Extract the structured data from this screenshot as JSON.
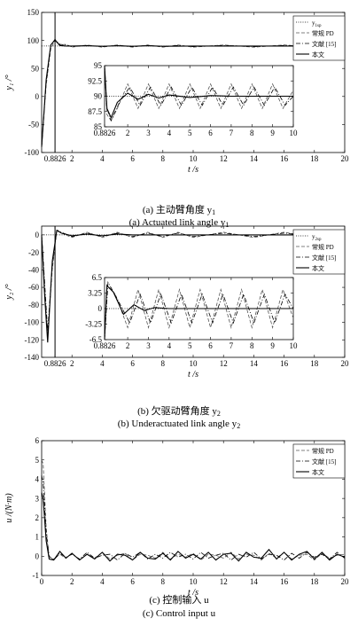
{
  "charts": [
    {
      "ylabel": "y₁ /°",
      "xlabel": "t /s",
      "caption_cn": "(a) 主动臂角度 y",
      "caption_cn_sub": "1",
      "caption_en": "(a) Actuated link angle y",
      "caption_en_sub": "1",
      "legend": [
        "y_1sp",
        "常规 PD",
        "文献 [15]",
        "本文"
      ]
    },
    {
      "ylabel": "y₂ /°",
      "xlabel": "t /s",
      "caption_cn": "(b) 欠驱动臂角度 y",
      "caption_cn_sub": "2",
      "caption_en": "(b) Underactuated link angle y",
      "caption_en_sub": "2",
      "legend": [
        "y_2sp",
        "常规 PD",
        "文献 [15]",
        "本文"
      ]
    },
    {
      "ylabel": "u /(N·m)",
      "xlabel": "t /s",
      "caption_cn": "(c) 控制输入 u",
      "caption_en": "(c) Control input u",
      "legend": [
        "常规 PD",
        "文献 [15]",
        "本文"
      ]
    }
  ],
  "chart_data": [
    {
      "type": "line",
      "xlim": [
        0,
        20
      ],
      "ylim": [
        -100,
        150
      ],
      "xticks": [
        "0.8826",
        "2",
        "4",
        "6",
        "8",
        "10",
        "12",
        "14",
        "16",
        "18",
        "20"
      ],
      "yticks": [
        "-100",
        "-50",
        "0",
        "50",
        "100",
        "150"
      ],
      "series": [
        {
          "name": "y_1sp",
          "style": "dotted",
          "x": [
            0,
            20
          ],
          "y": [
            90,
            90
          ]
        },
        {
          "name": "常规 PD",
          "style": "dashed",
          "x": [
            0,
            0.3,
            0.6,
            0.88,
            1.2,
            1.6,
            2,
            3,
            4,
            5,
            6,
            7,
            8,
            9,
            10,
            12,
            14,
            16,
            18,
            20
          ],
          "y": [
            -90,
            20,
            85,
            100,
            92,
            93,
            88,
            92,
            88,
            92,
            88,
            92,
            88,
            92,
            88,
            92,
            88,
            92,
            88,
            91
          ]
        },
        {
          "name": "文献 [15]",
          "style": "dashdot",
          "x": [
            0,
            0.3,
            0.6,
            0.88,
            1.2,
            1.6,
            2,
            3,
            4,
            5,
            6,
            7,
            8,
            9,
            10,
            12,
            14,
            16,
            18,
            20
          ],
          "y": [
            -90,
            25,
            90,
            102,
            93,
            92,
            89,
            91,
            89,
            91,
            89,
            91,
            89,
            91,
            89,
            91,
            89,
            91,
            89,
            90
          ]
        },
        {
          "name": "本文",
          "style": "solid",
          "x": [
            0,
            0.3,
            0.6,
            0.88,
            1.2,
            1.6,
            2,
            3,
            4,
            5,
            6,
            7,
            8,
            10,
            12,
            14,
            16,
            18,
            20
          ],
          "y": [
            -90,
            30,
            92,
            101,
            91,
            90,
            90,
            90.5,
            89.5,
            90.5,
            89.5,
            90.5,
            89.5,
            90,
            90,
            90,
            90,
            90,
            90
          ]
        }
      ],
      "inset": {
        "xlim": [
          0.8826,
          10
        ],
        "ylim": [
          85,
          95
        ],
        "xticks": [
          "0.8826",
          "2",
          "3",
          "4",
          "5",
          "6",
          "7",
          "8",
          "9",
          "10"
        ],
        "yticks": [
          "85",
          "87.5",
          "90",
          "92.5",
          "95"
        ],
        "series": [
          {
            "name": "y_1sp",
            "style": "dotted",
            "x": [
              0.8826,
              10
            ],
            "y": [
              90,
              90
            ]
          },
          {
            "name": "常规 PD",
            "style": "dashed",
            "x": [
              0.8826,
              1,
              1.2,
              1.5,
              2,
              2.5,
              3,
              3.5,
              4,
              4.5,
              5,
              5.5,
              6,
              6.5,
              7,
              7.5,
              8,
              8.5,
              9,
              9.5,
              10
            ],
            "y": [
              95,
              87,
              86,
              88,
              92,
              88,
              92,
              88,
              92,
              88,
              92,
              88,
              92,
              88,
              92,
              88,
              92,
              88,
              92,
              88,
              91
            ]
          },
          {
            "name": "文献 [15]",
            "style": "dashdot",
            "x": [
              0.8826,
              1,
              1.2,
              1.6,
              2.1,
              2.6,
              3.1,
              3.6,
              4.1,
              4.6,
              5.1,
              5.6,
              6.1,
              6.6,
              7.1,
              7.6,
              8.1,
              8.6,
              9.1,
              9.6,
              10
            ],
            "y": [
              95,
              88,
              86,
              89,
              91.5,
              88.5,
              91.5,
              88.5,
              91.5,
              88.5,
              91.5,
              88.5,
              91.5,
              88.5,
              91.5,
              88.5,
              91.5,
              88.5,
              91.5,
              88.5,
              90
            ]
          },
          {
            "name": "本文",
            "style": "solid",
            "x": [
              0.8826,
              1,
              1.2,
              1.5,
              2,
              2.5,
              3,
              3.5,
              4,
              5,
              6,
              7,
              8,
              9,
              10
            ],
            "y": [
              95,
              88,
              86.5,
              89,
              90.5,
              89.5,
              90.3,
              89.7,
              90.2,
              89.8,
              90.1,
              90,
              90,
              90,
              90
            ]
          }
        ]
      }
    },
    {
      "type": "line",
      "xlim": [
        0,
        20
      ],
      "ylim": [
        -140,
        10
      ],
      "xticks": [
        "0.8826",
        "2",
        "4",
        "6",
        "8",
        "10",
        "12",
        "14",
        "16",
        "18",
        "20"
      ],
      "yticks": [
        "-140",
        "-120",
        "-100",
        "-80",
        "-60",
        "-40",
        "-20",
        "0"
      ],
      "series": [
        {
          "name": "y_2sp",
          "style": "dotted",
          "x": [
            0,
            20
          ],
          "y": [
            0,
            0
          ]
        },
        {
          "name": "常规 PD",
          "style": "dashed",
          "x": [
            0,
            0.2,
            0.4,
            0.7,
            1.0,
            1.3,
            2,
            3,
            4,
            5,
            6,
            7,
            8,
            9,
            10,
            12,
            14,
            16,
            18,
            20
          ],
          "y": [
            0,
            -60,
            -115,
            -40,
            6,
            2,
            -3,
            3,
            -3,
            3,
            -3,
            3,
            -3,
            3,
            -3,
            3,
            -3,
            3,
            -3,
            2
          ]
        },
        {
          "name": "文献 [15]",
          "style": "dashdot",
          "x": [
            0,
            0.2,
            0.4,
            0.7,
            1.0,
            1.3,
            2,
            3,
            4,
            5,
            6,
            7,
            8,
            9,
            10,
            12,
            14,
            16,
            18,
            20
          ],
          "y": [
            0,
            -55,
            -110,
            -35,
            5,
            3,
            -2,
            2,
            -2,
            2,
            -2,
            2,
            -2,
            2,
            -2,
            2,
            -2,
            2,
            -2,
            1
          ]
        },
        {
          "name": "本文",
          "style": "solid",
          "x": [
            0,
            0.2,
            0.4,
            0.7,
            1.0,
            1.3,
            2,
            3,
            4,
            5,
            6,
            8,
            10,
            12,
            14,
            16,
            18,
            20
          ],
          "y": [
            0,
            -70,
            -123,
            -30,
            5,
            2,
            -1,
            1,
            -1,
            1,
            0,
            0,
            0,
            0,
            0,
            0,
            0,
            0
          ]
        }
      ],
      "inset": {
        "xlim": [
          0.8826,
          10
        ],
        "ylim": [
          -6.5,
          6.5
        ],
        "xticks": [
          "0.8826",
          "2",
          "3",
          "4",
          "5",
          "6",
          "7",
          "8",
          "9",
          "10"
        ],
        "yticks": [
          "-6.5",
          "-3.25",
          "0",
          "3.25",
          "6.5"
        ],
        "series": [
          {
            "name": "y_2sp",
            "style": "dotted",
            "x": [
              0.8826,
              10
            ],
            "y": [
              0,
              0
            ]
          },
          {
            "name": "常规 PD",
            "style": "dashed",
            "x": [
              0.8826,
              1.0,
              1.4,
              2,
              2.5,
              3,
              3.5,
              4,
              4.5,
              5,
              5.5,
              6,
              6.5,
              7,
              7.5,
              8,
              8.5,
              9,
              9.5,
              10
            ],
            "y": [
              -6.5,
              5,
              3,
              -4,
              4,
              -4,
              4,
              -4,
              4,
              -4,
              4,
              -4,
              4,
              -4,
              4,
              -4,
              4,
              -4,
              4,
              -2
            ]
          },
          {
            "name": "文献 [15]",
            "style": "dashdot",
            "x": [
              0.8826,
              1.05,
              1.5,
              2.1,
              2.6,
              3.1,
              3.6,
              4.1,
              4.6,
              5.1,
              5.6,
              6.1,
              6.6,
              7.1,
              7.6,
              8.1,
              8.6,
              9.1,
              9.6,
              10
            ],
            "y": [
              -6.5,
              5.5,
              2,
              -3,
              3,
              -3,
              3,
              -3,
              3,
              -3,
              3,
              -3,
              3,
              -3,
              3,
              -3,
              3,
              -3,
              3,
              0
            ]
          },
          {
            "name": "本文",
            "style": "solid",
            "x": [
              0.8826,
              1.0,
              1.3,
              1.8,
              2.3,
              2.8,
              3.3,
              4,
              5,
              6,
              7,
              8,
              10
            ],
            "y": [
              -6.5,
              4.8,
              3.5,
              -1.2,
              0.8,
              -0.4,
              0.2,
              0,
              0,
              0,
              0,
              0,
              0
            ]
          }
        ]
      }
    },
    {
      "type": "line",
      "xlim": [
        0,
        20
      ],
      "ylim": [
        -1,
        6
      ],
      "xticks": [
        "0",
        "2",
        "4",
        "6",
        "8",
        "10",
        "12",
        "14",
        "16",
        "18",
        "20"
      ],
      "yticks": [
        "-1",
        "0",
        "1",
        "2",
        "3",
        "4",
        "5",
        "6"
      ],
      "series": [
        {
          "name": "常规 PD",
          "style": "dashed",
          "x": [
            0,
            0.1,
            0.3,
            0.5,
            0.8,
            1.2,
            1.6,
            2,
            2.5,
            3,
            3.5,
            4,
            4.5,
            5,
            5.5,
            6,
            6.5,
            7,
            7.5,
            8,
            8.5,
            9,
            9.5,
            10,
            10.5,
            11,
            11.5,
            12,
            12.5,
            13,
            13.5,
            14,
            14.5,
            15,
            15.5,
            16,
            16.5,
            17,
            17.5,
            18,
            18.5,
            19,
            19.5,
            20
          ],
          "y": [
            5,
            4.8,
            1.5,
            -0.1,
            -0.15,
            0.1,
            -0.1,
            0.15,
            -0.2,
            0.1,
            -0.1,
            0.2,
            -0.15,
            0.05,
            0.15,
            -0.2,
            0.1,
            0.05,
            -0.1,
            0.2,
            -0.15,
            0.1,
            -0.05,
            0.15,
            -0.2,
            0.1,
            0.05,
            -0.1,
            0.2,
            -0.15,
            0.1,
            0.05,
            -0.2,
            0.15,
            -0.1,
            0.2,
            -0.15,
            0.05,
            0.1,
            -0.2,
            0.15,
            -0.1,
            0.05,
            0.1
          ]
        },
        {
          "name": "文献 [15]",
          "style": "dashdot",
          "x": [
            0,
            0.1,
            0.3,
            0.5,
            0.8,
            1.2,
            1.6,
            2,
            2.5,
            3,
            3.5,
            4,
            4.5,
            5,
            5.5,
            6,
            6.5,
            7,
            7.5,
            8,
            8.5,
            9,
            9.5,
            10,
            10.5,
            11,
            11.5,
            12,
            12.5,
            13,
            13.5,
            14,
            14.5,
            15,
            15.5,
            16,
            16.5,
            17,
            17.5,
            18,
            18.5,
            19,
            19.5,
            20
          ],
          "y": [
            4.2,
            3.8,
            1.2,
            0,
            -0.2,
            0.15,
            -0.05,
            0.1,
            -0.15,
            0.2,
            -0.1,
            0.05,
            0.1,
            -0.2,
            0.15,
            -0.05,
            0.2,
            -0.15,
            0.1,
            -0.1,
            0.2,
            -0.05,
            0.1,
            -0.15,
            0.2,
            -0.1,
            0.05,
            0.15,
            -0.2,
            0.1,
            -0.05,
            0.2,
            -0.15,
            0.1,
            0.05,
            -0.2,
            0.15,
            -0.1,
            0.2,
            -0.05,
            0.1,
            -0.15,
            0.2,
            -0.1
          ]
        },
        {
          "name": "本文",
          "style": "solid",
          "x": [
            0,
            0.1,
            0.3,
            0.5,
            0.8,
            1.2,
            1.6,
            2,
            2.5,
            3,
            3.5,
            4,
            4.5,
            5,
            5.5,
            6,
            6.5,
            7,
            7.5,
            8,
            8.5,
            9,
            9.5,
            10,
            10.5,
            11,
            11.5,
            12,
            12.5,
            13,
            13.5,
            14,
            14.5,
            15,
            15.5,
            16,
            16.5,
            17,
            17.5,
            18,
            18.5,
            19,
            19.5,
            20
          ],
          "y": [
            3.3,
            3.0,
            0.8,
            -0.15,
            -0.2,
            0.25,
            -0.1,
            0.15,
            -0.2,
            0.1,
            -0.15,
            0.2,
            -0.25,
            0.1,
            0.05,
            -0.2,
            0.2,
            -0.1,
            -0.15,
            0.15,
            -0.2,
            0.25,
            -0.1,
            0.1,
            -0.15,
            0.2,
            -0.2,
            0.1,
            0.15,
            -0.25,
            0.2,
            -0.05,
            -0.1,
            0.35,
            -0.15,
            0.2,
            -0.2,
            0.1,
            0.25,
            -0.15,
            0.2,
            -0.2,
            0.1,
            -0.05
          ]
        }
      ]
    }
  ]
}
